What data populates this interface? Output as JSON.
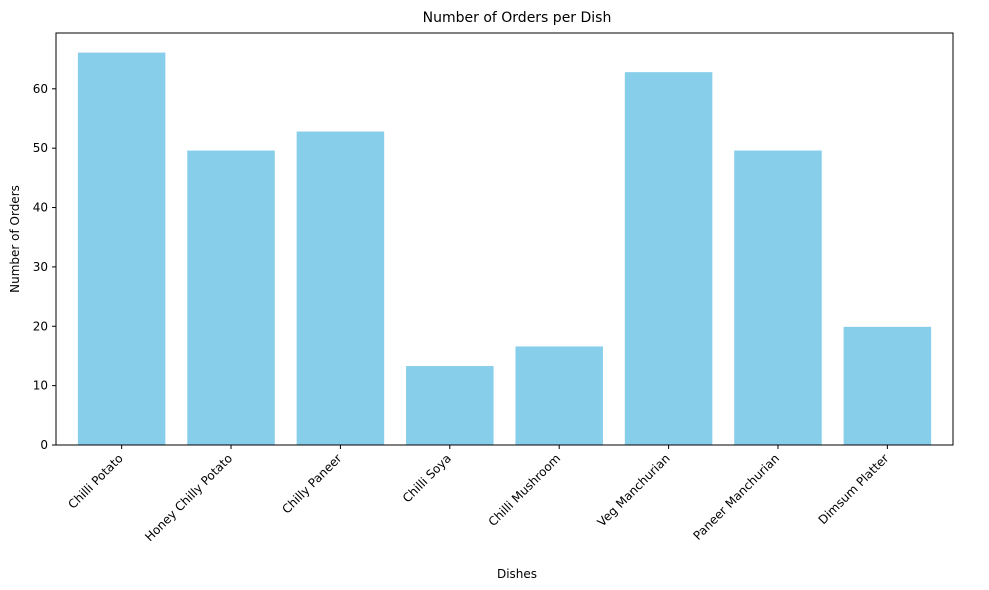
{
  "chart_data": {
    "type": "bar",
    "title": "Number of Orders per Dish",
    "xlabel": "Dishes",
    "ylabel": "Number of Orders",
    "categories": [
      "Chilli Potato",
      "Honey Chilly Potato",
      "Chilly Paneer",
      "Chilli Soya",
      "Chilli Mushroom",
      "Veg Manchurian",
      "Paneer Manchurian",
      "Dimsum Platter"
    ],
    "values": [
      66.1,
      49.6,
      52.8,
      13.3,
      16.6,
      62.8,
      49.6,
      19.9
    ],
    "ylim": [
      0,
      69.4
    ],
    "yticks": [
      "0",
      "10",
      "20",
      "30",
      "40",
      "50",
      "60"
    ],
    "grid": false,
    "bar_color": "#87ceeb"
  }
}
